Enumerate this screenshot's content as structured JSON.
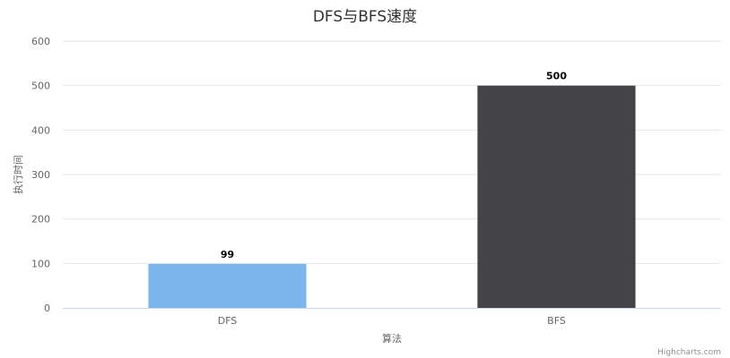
{
  "chart_data": {
    "type": "bar",
    "title": "DFS与BFS速度",
    "xlabel": "算法",
    "ylabel": "执行时间",
    "categories": [
      "DFS",
      "BFS"
    ],
    "values": [
      99,
      500
    ],
    "colors": [
      "#7cb5ec",
      "#434348"
    ],
    "ylim": [
      0,
      600
    ],
    "yticks": [
      0,
      100,
      200,
      300,
      400,
      500,
      600
    ],
    "grid": true,
    "legend": "none",
    "data_labels": true
  },
  "credits": "Highcharts.com"
}
